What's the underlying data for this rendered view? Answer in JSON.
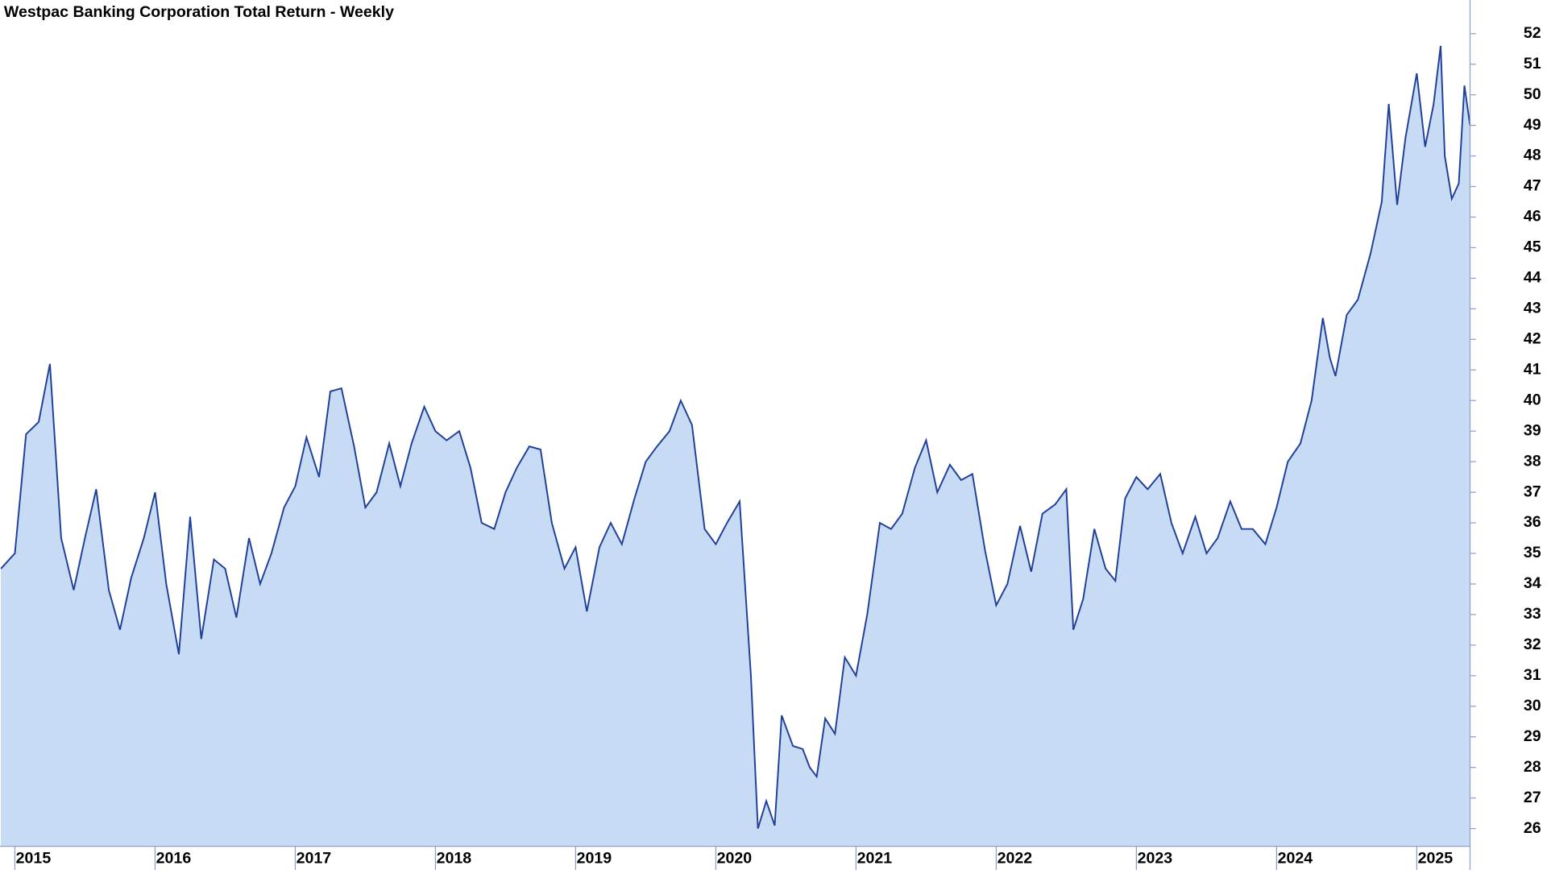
{
  "chart_data": {
    "type": "area",
    "title": "Westpac Banking Corporation Total Return - Weekly",
    "x": [
      2014.9,
      2015.0,
      2015.08,
      2015.17,
      2015.25,
      2015.33,
      2015.42,
      2015.5,
      2015.58,
      2015.67,
      2015.75,
      2015.83,
      2015.92,
      2016.0,
      2016.08,
      2016.17,
      2016.25,
      2016.33,
      2016.42,
      2016.5,
      2016.58,
      2016.67,
      2016.75,
      2016.83,
      2016.92,
      2017.0,
      2017.08,
      2017.17,
      2017.25,
      2017.33,
      2017.42,
      2017.5,
      2017.58,
      2017.67,
      2017.75,
      2017.83,
      2017.92,
      2018.0,
      2018.08,
      2018.17,
      2018.25,
      2018.33,
      2018.42,
      2018.5,
      2018.58,
      2018.67,
      2018.75,
      2018.83,
      2018.92,
      2019.0,
      2019.08,
      2019.17,
      2019.25,
      2019.33,
      2019.42,
      2019.5,
      2019.58,
      2019.67,
      2019.75,
      2019.83,
      2019.92,
      2020.0,
      2020.08,
      2020.17,
      2020.25,
      2020.3,
      2020.36,
      2020.42,
      2020.47,
      2020.55,
      2020.62,
      2020.67,
      2020.72,
      2020.78,
      2020.85,
      2020.92,
      2021.0,
      2021.08,
      2021.17,
      2021.25,
      2021.33,
      2021.42,
      2021.5,
      2021.58,
      2021.67,
      2021.75,
      2021.83,
      2021.92,
      2022.0,
      2022.08,
      2022.17,
      2022.25,
      2022.33,
      2022.42,
      2022.5,
      2022.55,
      2022.62,
      2022.7,
      2022.78,
      2022.85,
      2022.92,
      2023.0,
      2023.08,
      2023.17,
      2023.25,
      2023.33,
      2023.42,
      2023.5,
      2023.58,
      2023.67,
      2023.75,
      2023.83,
      2023.92,
      2024.0,
      2024.08,
      2024.17,
      2024.25,
      2024.33,
      2024.38,
      2024.42,
      2024.5,
      2024.58,
      2024.67,
      2024.75,
      2024.8,
      2024.86,
      2024.92,
      2025.0,
      2025.06,
      2025.12,
      2025.17,
      2025.2,
      2025.25,
      2025.3,
      2025.34,
      2025.38
    ],
    "values": [
      34.5,
      35.0,
      38.9,
      39.3,
      41.2,
      35.5,
      33.8,
      35.5,
      37.1,
      33.8,
      32.5,
      34.2,
      35.5,
      37.0,
      34.0,
      31.7,
      36.2,
      32.2,
      34.8,
      34.5,
      32.9,
      35.5,
      34.0,
      35.0,
      36.5,
      37.2,
      38.8,
      37.5,
      40.3,
      40.4,
      38.5,
      36.5,
      37.0,
      38.6,
      37.2,
      38.6,
      39.8,
      39.0,
      38.7,
      39.0,
      37.8,
      36.0,
      35.8,
      37.0,
      37.8,
      38.5,
      38.4,
      36.0,
      34.5,
      35.2,
      33.1,
      35.2,
      36.0,
      35.3,
      36.8,
      38.0,
      38.5,
      39.0,
      40.0,
      39.2,
      35.8,
      35.3,
      36.0,
      36.7,
      31.0,
      26.0,
      26.9,
      26.1,
      29.7,
      28.7,
      28.6,
      28.0,
      27.7,
      29.6,
      29.1,
      31.6,
      31.0,
      33.0,
      36.0,
      35.8,
      36.3,
      37.8,
      38.7,
      37.0,
      37.9,
      37.4,
      37.6,
      35.1,
      33.3,
      34.0,
      35.9,
      34.4,
      36.3,
      36.6,
      37.1,
      32.5,
      33.5,
      35.8,
      34.5,
      34.1,
      36.8,
      37.5,
      37.1,
      37.6,
      36.0,
      35.0,
      36.2,
      35.0,
      35.5,
      36.7,
      35.8,
      35.8,
      35.3,
      36.5,
      38.0,
      38.6,
      40.0,
      42.7,
      41.4,
      40.8,
      42.8,
      43.3,
      44.8,
      46.5,
      49.7,
      46.4,
      48.6,
      50.7,
      48.3,
      49.7,
      51.6,
      48.0,
      46.6,
      47.1,
      50.3,
      49.0
    ],
    "line_color": "#1f3f99",
    "fill_color": "#c7dbf5",
    "xlim": [
      2014.894,
      2025.38
    ],
    "xticks": [
      2015,
      2016,
      2017,
      2018,
      2019,
      2020,
      2021,
      2022,
      2023,
      2024,
      2025
    ],
    "ylim": [
      25.42,
      53.1
    ],
    "yticks": [
      26,
      27,
      28,
      29,
      30,
      31,
      32,
      33,
      34,
      35,
      36,
      37,
      38,
      39,
      40,
      41,
      42,
      43,
      44,
      45,
      46,
      47,
      48,
      49,
      50,
      51,
      52
    ]
  }
}
